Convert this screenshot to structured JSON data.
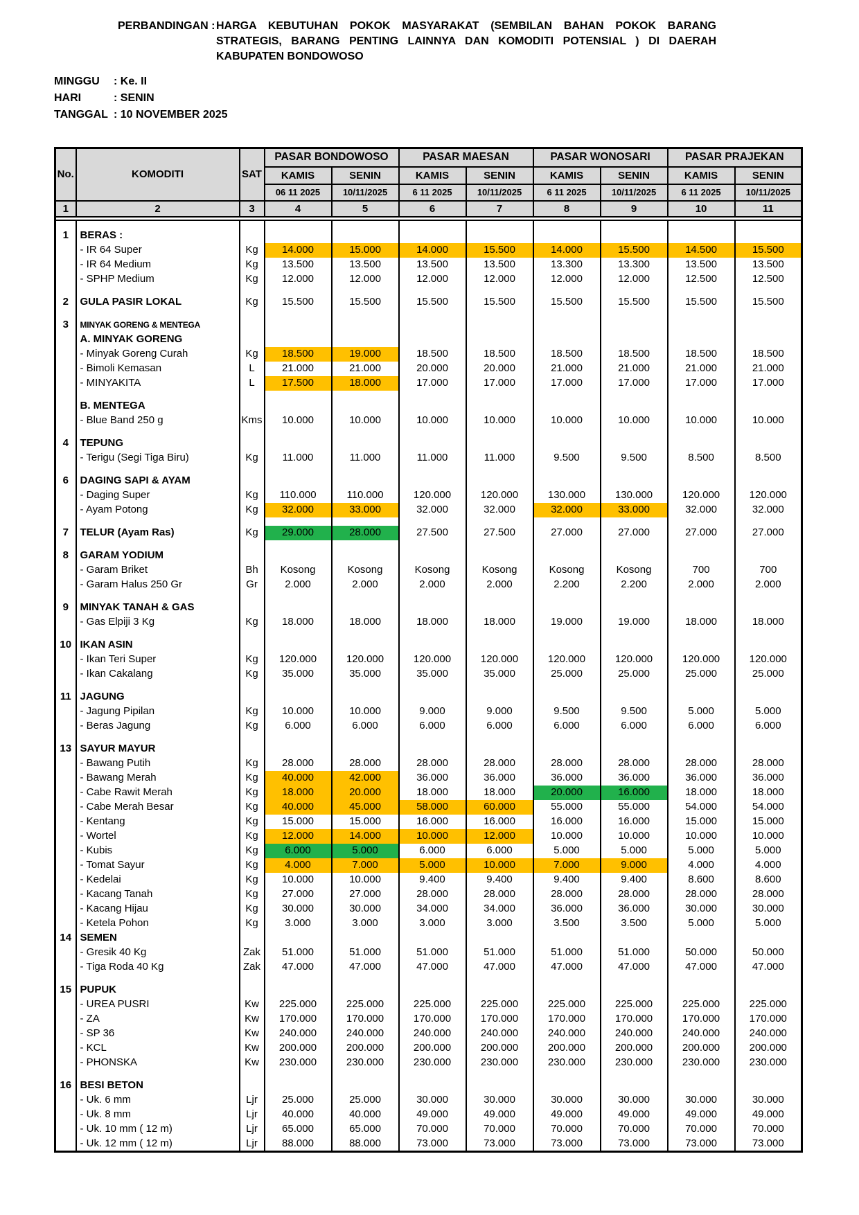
{
  "title": {
    "label": "PERBANDINGAN :",
    "lines": [
      "HARGA KEBUTUHAN POKOK MASYARAKAT (SEMBILAN BAHAN POKOK BARANG",
      "STRATEGIS, BARANG PENTING LAINNYA DAN KOMODITI POTENSIAL ) DI DAERAH",
      "KABUPATEN BONDOWOSO"
    ]
  },
  "meta": [
    {
      "label": "MINGGU",
      "value": ": Ke. II"
    },
    {
      "label": "HARI",
      "value": ": SENIN"
    },
    {
      "label": "TANGGAL",
      "value": ": 10 NOVEMBER 2025"
    }
  ],
  "table": {
    "header_gray": "#D9D9D9",
    "highlight_colors": {
      "orange": "#FFC000",
      "green": "#21B14C"
    },
    "corner_headers": {
      "no": "No.",
      "komoditi": "KOMODITI",
      "sat": "SAT"
    },
    "markets": [
      {
        "name": "PASAR BONDOWOSO",
        "days": [
          "KAMIS",
          "SENIN"
        ],
        "dates": [
          "06 11 2025",
          "10/11/2025"
        ]
      },
      {
        "name": "PASAR MAESAN",
        "days": [
          "KAMIS",
          "SENIN"
        ],
        "dates": [
          "6 11 2025",
          "10/11/2025"
        ]
      },
      {
        "name": "PASAR WONOSARI",
        "days": [
          "KAMIS",
          "SENIN"
        ],
        "dates": [
          "6 11 2025",
          "10/11/2025"
        ]
      },
      {
        "name": "PASAR PRAJEKAN",
        "days": [
          "KAMIS",
          "SENIN"
        ],
        "dates": [
          "6 11 2025",
          "10/11/2025"
        ]
      }
    ],
    "column_numbers": [
      "1",
      "2",
      "3",
      "4",
      "5",
      "6",
      "7",
      "8",
      "9",
      "10",
      "11"
    ],
    "rows": [
      {
        "sp": 1
      },
      {
        "no": "1",
        "label": "BERAS :",
        "bold": 1
      },
      {
        "label": "- IR 64 Super",
        "sat": "Kg",
        "v": [
          "14.000",
          "15.000",
          "14.000",
          "15.500",
          "14.000",
          "15.500",
          "14.500",
          "15.500"
        ],
        "h": [
          "o",
          "o",
          "o",
          "o",
          "o",
          "o",
          "o",
          "o"
        ]
      },
      {
        "label": "- IR 64 Medium",
        "sat": "Kg",
        "v": [
          "13.500",
          "13.500",
          "13.500",
          "13.500",
          "13.300",
          "13.300",
          "13.500",
          "13.500"
        ]
      },
      {
        "label": "- SPHP Medium",
        "sat": "Kg",
        "v": [
          "12.000",
          "12.000",
          "12.000",
          "12.000",
          "12.000",
          "12.000",
          "12.500",
          "12.500"
        ]
      },
      {
        "sp": 1
      },
      {
        "no": "2",
        "label": "GULA PASIR LOKAL",
        "bold": 1,
        "sat": "Kg",
        "v": [
          "15.500",
          "15.500",
          "15.500",
          "15.500",
          "15.500",
          "15.500",
          "15.500",
          "15.500"
        ]
      },
      {
        "sp": 1
      },
      {
        "no": "3",
        "label": "MINYAK GORENG & MENTEGA",
        "bold": 1,
        "small": 1
      },
      {
        "label": "A. MINYAK GORENG",
        "bold": 1
      },
      {
        "label": "- Minyak Goreng Curah",
        "sat": "Kg",
        "v": [
          "18.500",
          "19.000",
          "18.500",
          "18.500",
          "18.500",
          "18.500",
          "18.500",
          "18.500"
        ],
        "h": [
          "o",
          "o",
          "",
          "",
          "",
          "",
          "",
          ""
        ]
      },
      {
        "label": "- Bimoli Kemasan",
        "sat": "L",
        "v": [
          "21.000",
          "21.000",
          "20.000",
          "20.000",
          "21.000",
          "21.000",
          "21.000",
          "21.000"
        ]
      },
      {
        "label": "- MINYAKITA",
        "sat": "L",
        "v": [
          "17.500",
          "18.000",
          "17.000",
          "17.000",
          "17.000",
          "17.000",
          "17.000",
          "17.000"
        ],
        "h": [
          "o",
          "o",
          "",
          "",
          "",
          "",
          "",
          ""
        ]
      },
      {
        "sp": 1
      },
      {
        "label": "B. MENTEGA",
        "bold": 1
      },
      {
        "label": "- Blue Band 250 g",
        "sat": "Kms",
        "v": [
          "10.000",
          "10.000",
          "10.000",
          "10.000",
          "10.000",
          "10.000",
          "10.000",
          "10.000"
        ]
      },
      {
        "sp": 1
      },
      {
        "no": "4",
        "label": "TEPUNG",
        "bold": 1
      },
      {
        "label": "- Terigu (Segi Tiga Biru)",
        "sat": "Kg",
        "v": [
          "11.000",
          "11.000",
          "11.000",
          "11.000",
          "9.500",
          "9.500",
          "8.500",
          "8.500"
        ]
      },
      {
        "sp": 1
      },
      {
        "no": "6",
        "label": "DAGING SAPI & AYAM",
        "bold": 1
      },
      {
        "label": "- Daging Super",
        "sat": "Kg",
        "v": [
          "110.000",
          "110.000",
          "120.000",
          "120.000",
          "130.000",
          "130.000",
          "120.000",
          "120.000"
        ]
      },
      {
        "label": "- Ayam Potong",
        "sat": "Kg",
        "v": [
          "32.000",
          "33.000",
          "32.000",
          "32.000",
          "32.000",
          "33.000",
          "32.000",
          "32.000"
        ],
        "h": [
          "o",
          "o",
          "",
          "",
          "o",
          "o",
          "",
          ""
        ]
      },
      {
        "sp": 1
      },
      {
        "no": "7",
        "label": "TELUR (Ayam Ras)",
        "bold": 1,
        "sat": "Kg",
        "v": [
          "29.000",
          "28.000",
          "27.500",
          "27.500",
          "27.000",
          "27.000",
          "27.000",
          "27.000"
        ],
        "h": [
          "g",
          "g",
          "",
          "",
          "",
          "",
          "",
          ""
        ]
      },
      {
        "sp": 1
      },
      {
        "no": "8",
        "label": "GARAM YODIUM",
        "bold": 1
      },
      {
        "label": "- Garam Briket",
        "sat": "Bh",
        "v": [
          "Kosong",
          "Kosong",
          "Kosong",
          "Kosong",
          "Kosong",
          "Kosong",
          "700",
          "700"
        ]
      },
      {
        "label": "- Garam Halus 250 Gr",
        "sat": "Gr",
        "v": [
          "2.000",
          "2.000",
          "2.000",
          "2.000",
          "2.200",
          "2.200",
          "2.000",
          "2.000"
        ]
      },
      {
        "sp": 1
      },
      {
        "no": "9",
        "label": "MINYAK TANAH & GAS",
        "bold": 1
      },
      {
        "label": "- Gas Elpiji 3 Kg",
        "sat": "Kg",
        "v": [
          "18.000",
          "18.000",
          "18.000",
          "18.000",
          "19.000",
          "19.000",
          "18.000",
          "18.000"
        ]
      },
      {
        "sp": 1
      },
      {
        "no": "10",
        "label": "IKAN ASIN",
        "bold": 1
      },
      {
        "label": "- Ikan Teri Super",
        "sat": "Kg",
        "v": [
          "120.000",
          "120.000",
          "120.000",
          "120.000",
          "120.000",
          "120.000",
          "120.000",
          "120.000"
        ]
      },
      {
        "label": "- Ikan Cakalang",
        "sat": "Kg",
        "v": [
          "35.000",
          "35.000",
          "35.000",
          "35.000",
          "25.000",
          "25.000",
          "25.000",
          "25.000"
        ]
      },
      {
        "sp": 1
      },
      {
        "no": "11",
        "label": "JAGUNG",
        "bold": 1
      },
      {
        "label": "- Jagung Pipilan",
        "sat": "Kg",
        "v": [
          "10.000",
          "10.000",
          "9.000",
          "9.000",
          "9.500",
          "9.500",
          "5.000",
          "5.000"
        ]
      },
      {
        "label": "- Beras Jagung",
        "sat": "Kg",
        "v": [
          "6.000",
          "6.000",
          "6.000",
          "6.000",
          "6.000",
          "6.000",
          "6.000",
          "6.000"
        ]
      },
      {
        "sp": 1
      },
      {
        "no": "13",
        "label": "SAYUR MAYUR",
        "bold": 1
      },
      {
        "label": "- Bawang Putih",
        "sat": "Kg",
        "v": [
          "28.000",
          "28.000",
          "28.000",
          "28.000",
          "28.000",
          "28.000",
          "28.000",
          "28.000"
        ]
      },
      {
        "label": "- Bawang Merah",
        "sat": "Kg",
        "v": [
          "40.000",
          "42.000",
          "36.000",
          "36.000",
          "36.000",
          "36.000",
          "36.000",
          "36.000"
        ],
        "h": [
          "o",
          "o",
          "",
          "",
          "",
          "",
          "",
          ""
        ]
      },
      {
        "label": "- Cabe Rawit Merah",
        "sat": "Kg",
        "v": [
          "18.000",
          "20.000",
          "18.000",
          "18.000",
          "20.000",
          "16.000",
          "18.000",
          "18.000"
        ],
        "h": [
          "o",
          "o",
          "",
          "",
          "g",
          "g",
          "",
          ""
        ]
      },
      {
        "label": "- Cabe Merah Besar",
        "sat": "Kg",
        "v": [
          "40.000",
          "45.000",
          "58.000",
          "60.000",
          "55.000",
          "55.000",
          "54.000",
          "54.000"
        ],
        "h": [
          "o",
          "o",
          "o",
          "o",
          "",
          "",
          "",
          ""
        ]
      },
      {
        "label": "- Kentang",
        "sat": "Kg",
        "v": [
          "15.000",
          "15.000",
          "16.000",
          "16.000",
          "16.000",
          "16.000",
          "15.000",
          "15.000"
        ]
      },
      {
        "label": "- Wortel",
        "sat": "Kg",
        "v": [
          "12.000",
          "14.000",
          "10.000",
          "12.000",
          "10.000",
          "10.000",
          "10.000",
          "10.000"
        ],
        "h": [
          "o",
          "o",
          "o",
          "o",
          "",
          "",
          "",
          ""
        ]
      },
      {
        "label": "- Kubis",
        "sat": "Kg",
        "v": [
          "6.000",
          "5.000",
          "6.000",
          "6.000",
          "5.000",
          "5.000",
          "5.000",
          "5.000"
        ],
        "h": [
          "g",
          "g",
          "",
          "",
          "",
          "",
          "",
          ""
        ]
      },
      {
        "label": "- Tomat Sayur",
        "sat": "Kg",
        "v": [
          "4.000",
          "7.000",
          "5.000",
          "10.000",
          "7.000",
          "9.000",
          "4.000",
          "4.000"
        ],
        "h": [
          "o",
          "o",
          "o",
          "o",
          "o",
          "o",
          "",
          ""
        ]
      },
      {
        "label": "- Kedelai",
        "sat": "Kg",
        "v": [
          "10.000",
          "10.000",
          "9.400",
          "9.400",
          "9.400",
          "9.400",
          "8.600",
          "8.600"
        ]
      },
      {
        "label": "- Kacang Tanah",
        "sat": "Kg",
        "v": [
          "27.000",
          "27.000",
          "28.000",
          "28.000",
          "28.000",
          "28.000",
          "28.000",
          "28.000"
        ]
      },
      {
        "label": "- Kacang Hijau",
        "sat": "Kg",
        "v": [
          "30.000",
          "30.000",
          "34.000",
          "34.000",
          "36.000",
          "36.000",
          "30.000",
          "30.000"
        ]
      },
      {
        "label": "- Ketela Pohon",
        "sat": "Kg",
        "v": [
          "3.000",
          "3.000",
          "3.000",
          "3.000",
          "3.500",
          "3.500",
          "5.000",
          "5.000"
        ]
      },
      {
        "no": "14",
        "label": "SEMEN",
        "bold": 1
      },
      {
        "label": "- Gresik 40 Kg",
        "sat": "Zak",
        "v": [
          "51.000",
          "51.000",
          "51.000",
          "51.000",
          "51.000",
          "51.000",
          "50.000",
          "50.000"
        ]
      },
      {
        "label": "- Tiga Roda 40 Kg",
        "sat": "Zak",
        "v": [
          "47.000",
          "47.000",
          "47.000",
          "47.000",
          "47.000",
          "47.000",
          "47.000",
          "47.000"
        ]
      },
      {
        "sp": 1
      },
      {
        "no": "15",
        "label": "PUPUK",
        "bold": 1
      },
      {
        "label": "- UREA PUSRI",
        "sat": "Kw",
        "v": [
          "225.000",
          "225.000",
          "225.000",
          "225.000",
          "225.000",
          "225.000",
          "225.000",
          "225.000"
        ]
      },
      {
        "label": "- ZA",
        "sat": "Kw",
        "v": [
          "170.000",
          "170.000",
          "170.000",
          "170.000",
          "170.000",
          "170.000",
          "170.000",
          "170.000"
        ]
      },
      {
        "label": "- SP 36",
        "sat": "Kw",
        "v": [
          "240.000",
          "240.000",
          "240.000",
          "240.000",
          "240.000",
          "240.000",
          "240.000",
          "240.000"
        ]
      },
      {
        "label": "- KCL",
        "sat": "Kw",
        "v": [
          "200.000",
          "200.000",
          "200.000",
          "200.000",
          "200.000",
          "200.000",
          "200.000",
          "200.000"
        ]
      },
      {
        "label": "- PHONSKA",
        "sat": "Kw",
        "v": [
          "230.000",
          "230.000",
          "230.000",
          "230.000",
          "230.000",
          "230.000",
          "230.000",
          "230.000"
        ]
      },
      {
        "sp": 1
      },
      {
        "no": "16",
        "label": "BESI BETON",
        "bold": 1
      },
      {
        "label": "- Uk. 6 mm",
        "sat": "Ljr",
        "v": [
          "25.000",
          "25.000",
          "30.000",
          "30.000",
          "30.000",
          "30.000",
          "30.000",
          "30.000"
        ]
      },
      {
        "label": "- Uk. 8 mm",
        "sat": "Ljr",
        "v": [
          "40.000",
          "40.000",
          "49.000",
          "49.000",
          "49.000",
          "49.000",
          "49.000",
          "49.000"
        ]
      },
      {
        "label": "- Uk. 10 mm ( 12 m)",
        "sat": "Ljr",
        "v": [
          "65.000",
          "65.000",
          "70.000",
          "70.000",
          "70.000",
          "70.000",
          "70.000",
          "70.000"
        ]
      },
      {
        "label": "- Uk. 12 mm ( 12 m)",
        "sat": "Ljr",
        "v": [
          "88.000",
          "88.000",
          "73.000",
          "73.000",
          "73.000",
          "73.000",
          "73.000",
          "73.000"
        ]
      }
    ]
  }
}
